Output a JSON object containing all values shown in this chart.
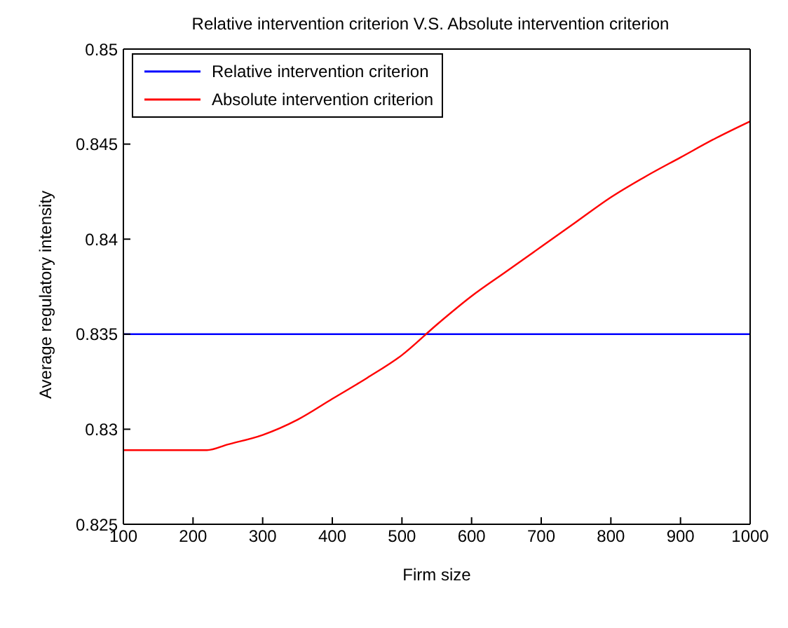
{
  "chart_data": {
    "type": "line",
    "title": "Relative intervention criterion V.S. Absolute intervention criterion",
    "xlabel": "Firm size",
    "ylabel": "Average regulatory intensity",
    "series": [
      {
        "name": "Relative intervention criterion",
        "color": "#0000ff",
        "x": [
          100,
          1000
        ],
        "values": [
          0.835,
          0.835
        ]
      },
      {
        "name": "Absolute intervention criterion",
        "color": "#ff0000",
        "x": [
          100,
          200,
          220,
          250,
          300,
          350,
          400,
          450,
          500,
          550,
          600,
          650,
          700,
          750,
          800,
          850,
          900,
          950,
          1000
        ],
        "values": [
          0.8289,
          0.8289,
          0.8289,
          0.8292,
          0.8297,
          0.8305,
          0.8316,
          0.8327,
          0.8339,
          0.8355,
          0.837,
          0.8383,
          0.8396,
          0.8409,
          0.8422,
          0.8433,
          0.8443,
          0.8453,
          0.8462
        ]
      }
    ],
    "xlim": [
      100,
      1000
    ],
    "xticks": [
      100,
      200,
      300,
      400,
      500,
      600,
      700,
      800,
      900,
      1000
    ],
    "ylim": [
      0.825,
      0.85
    ],
    "yticks": [
      0.825,
      0.83,
      0.835,
      0.84,
      0.845,
      0.85
    ],
    "legend": "top left",
    "marker": "none",
    "line_style": "solid"
  }
}
